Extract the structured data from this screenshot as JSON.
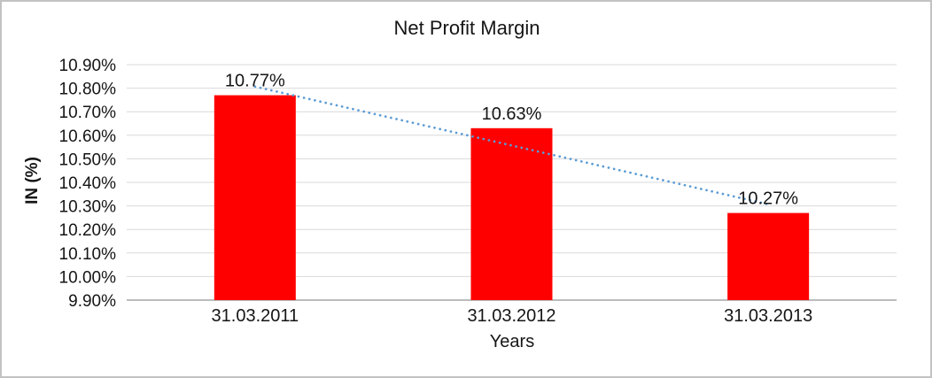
{
  "chart_data": {
    "type": "bar",
    "title": "Net Profit Margin",
    "xlabel": "Years",
    "ylabel": "IN (%)",
    "categories": [
      "31.03.2011",
      "31.03.2012",
      "31.03.2013"
    ],
    "values": [
      10.77,
      10.63,
      10.27
    ],
    "data_labels": [
      "10.77%",
      "10.63%",
      "10.27%"
    ],
    "ylim": [
      9.9,
      10.9
    ],
    "ytick_step": 0.1,
    "ytick_labels": [
      "9.90%",
      "10.00%",
      "10.10%",
      "10.20%",
      "10.30%",
      "10.40%",
      "10.50%",
      "10.60%",
      "10.70%",
      "10.80%",
      "10.90%"
    ],
    "grid": true,
    "legend": false,
    "colors": {
      "bar": "#ff0000",
      "trendline": "#5b9bd5",
      "gridline": "#d9d9d9",
      "axis_line": "#a6a6a6",
      "text": "#151515",
      "frame_border": "#c3c3c3"
    },
    "trendline": {
      "type": "linear",
      "style": "dotted"
    }
  }
}
